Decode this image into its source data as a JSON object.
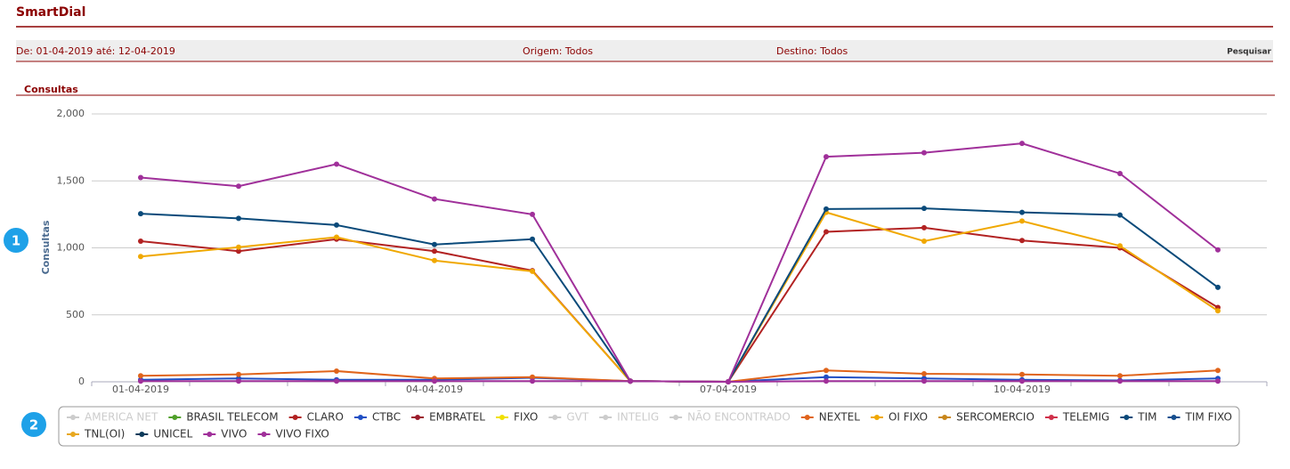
{
  "header": {
    "title": "SmartDial"
  },
  "filters": {
    "period": "De: 01-04-2019 até: 12-04-2019",
    "origin": "Origem: Todos",
    "destination": "Destino: Todos",
    "search": "Pesquisar"
  },
  "section": {
    "title": "Consultas"
  },
  "badges": [
    "1",
    "2"
  ],
  "chart_data": {
    "type": "line",
    "y_label": "Consultas",
    "categories": [
      "01-04-2019",
      null,
      null,
      "04-04-2019",
      null,
      null,
      "07-04-2019",
      null,
      null,
      "10-04-2019",
      null,
      null
    ],
    "ylim": [
      0,
      2000
    ],
    "yticks": [
      0,
      500,
      {
        "value": 1000,
        "label": "1,000"
      },
      {
        "value": 1500,
        "label": "1,500"
      },
      {
        "value": 2000,
        "label": "2,000"
      }
    ],
    "grid": true,
    "series": [
      {
        "name": "AMERICA NET",
        "color": "#cccccc",
        "visible": false,
        "values": [
          null,
          null,
          null,
          null,
          null,
          null,
          null,
          null,
          null,
          null,
          null,
          null
        ]
      },
      {
        "name": "BRASIL TELECOM",
        "color": "#50a02a",
        "visible": true,
        "values": [
          null,
          null,
          null,
          null,
          null,
          null,
          null,
          null,
          null,
          null,
          null,
          null
        ]
      },
      {
        "name": "CLARO",
        "color": "#b22222",
        "visible": true,
        "values": [
          1050,
          975,
          1065,
          975,
          830,
          5,
          0,
          1120,
          1150,
          1055,
          1000,
          555
        ]
      },
      {
        "name": "CTBC",
        "color": "#1f4fc4",
        "visible": true,
        "values": [
          15,
          25,
          15,
          15,
          30,
          5,
          0,
          35,
          25,
          15,
          10,
          25
        ]
      },
      {
        "name": "EMBRATEL",
        "color": "#9b1c2c",
        "visible": true,
        "values": [
          null,
          null,
          null,
          null,
          null,
          null,
          null,
          null,
          null,
          null,
          null,
          null
        ]
      },
      {
        "name": "FIXO",
        "color": "#f0e000",
        "visible": true,
        "values": [
          null,
          null,
          null,
          null,
          null,
          null,
          null,
          null,
          null,
          null,
          null,
          null
        ]
      },
      {
        "name": "GVT",
        "color": "#cccccc",
        "visible": false,
        "values": [
          null,
          null,
          null,
          null,
          null,
          null,
          null,
          null,
          null,
          null,
          null,
          null
        ]
      },
      {
        "name": "INTELIG",
        "color": "#cccccc",
        "visible": false,
        "values": [
          null,
          null,
          null,
          null,
          null,
          null,
          null,
          null,
          null,
          null,
          null,
          null
        ]
      },
      {
        "name": "NÃO ENCONTRADO",
        "color": "#cccccc",
        "visible": false,
        "values": [
          null,
          null,
          null,
          null,
          null,
          null,
          null,
          null,
          null,
          null,
          null,
          null
        ]
      },
      {
        "name": "NEXTEL",
        "color": "#e0641b",
        "visible": true,
        "values": [
          45,
          55,
          80,
          25,
          35,
          5,
          0,
          85,
          60,
          55,
          45,
          85
        ]
      },
      {
        "name": "OI FIXO",
        "color": "#f0a800",
        "visible": true,
        "values": [
          935,
          1005,
          1080,
          905,
          825,
          5,
          0,
          1265,
          1050,
          1200,
          1015,
          530
        ]
      },
      {
        "name": "SERCOMERCIO",
        "color": "#c8861a",
        "visible": true,
        "values": [
          null,
          null,
          null,
          null,
          null,
          null,
          null,
          null,
          null,
          null,
          null,
          null
        ]
      },
      {
        "name": "TELEMIG",
        "color": "#d0304a",
        "visible": true,
        "values": [
          null,
          null,
          null,
          null,
          null,
          null,
          null,
          null,
          null,
          null,
          null,
          null
        ]
      },
      {
        "name": "TIM",
        "color": "#0a4a7a",
        "visible": true,
        "values": [
          1255,
          1220,
          1170,
          1025,
          1065,
          5,
          0,
          1290,
          1295,
          1265,
          1245,
          705
        ]
      },
      {
        "name": "TIM FIXO",
        "color": "#154f8f",
        "visible": true,
        "values": [
          null,
          null,
          null,
          null,
          null,
          null,
          null,
          null,
          null,
          null,
          null,
          null
        ]
      },
      {
        "name": "TNL(OI)",
        "color": "#e8a820",
        "visible": true,
        "values": [
          null,
          null,
          null,
          null,
          null,
          null,
          null,
          null,
          null,
          null,
          null,
          null
        ]
      },
      {
        "name": "UNICEL",
        "color": "#0b3a5a",
        "visible": true,
        "values": [
          null,
          null,
          null,
          null,
          null,
          null,
          null,
          null,
          null,
          null,
          null,
          null
        ]
      },
      {
        "name": "VIVO",
        "color": "#a0309a",
        "visible": true,
        "values": [
          1525,
          1460,
          1625,
          1365,
          1250,
          5,
          0,
          1680,
          1710,
          1780,
          1555,
          985
        ]
      },
      {
        "name": "VIVO FIXO",
        "color": "#a0309a",
        "visible": true,
        "values": [
          5,
          5,
          5,
          5,
          5,
          5,
          0,
          5,
          5,
          5,
          5,
          5
        ]
      }
    ]
  }
}
